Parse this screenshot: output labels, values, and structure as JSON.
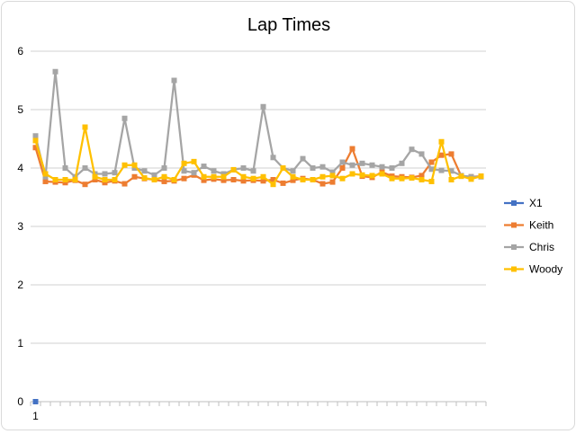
{
  "chart_data": {
    "type": "line",
    "title": "Lap Times",
    "xlabel": "",
    "ylabel": "",
    "ylim": [
      0,
      6
    ],
    "yticks": [
      0,
      1,
      2,
      3,
      4,
      5,
      6
    ],
    "x_tick_labels": [
      "1"
    ],
    "n_points": 46,
    "grid": "horizontal",
    "legend_position": "right",
    "series": [
      {
        "name": "X1",
        "color": "#4472C4",
        "values": [
          0
        ]
      },
      {
        "name": "Keith",
        "color": "#ED7D31",
        "values": [
          4.35,
          3.77,
          3.76,
          3.75,
          3.79,
          3.72,
          3.8,
          3.75,
          3.78,
          3.73,
          3.85,
          3.82,
          3.8,
          3.77,
          3.78,
          3.82,
          3.88,
          3.79,
          3.81,
          3.79,
          3.8,
          3.78,
          3.79,
          3.78,
          3.8,
          3.74,
          3.79,
          3.82,
          3.8,
          3.73,
          3.76,
          4.0,
          4.33,
          3.86,
          3.84,
          3.93,
          3.86,
          3.85,
          3.84,
          3.87,
          4.1,
          4.22,
          4.24,
          3.86,
          3.85,
          3.86
        ]
      },
      {
        "name": "Chris",
        "color": "#A5A5A5",
        "values": [
          4.55,
          3.85,
          5.65,
          4.0,
          3.85,
          4.0,
          3.9,
          3.9,
          3.92,
          4.85,
          4.0,
          3.95,
          3.88,
          4.0,
          5.5,
          3.95,
          3.92,
          4.03,
          3.95,
          3.9,
          3.97,
          4.0,
          3.95,
          5.05,
          4.18,
          4.0,
          3.95,
          4.16,
          4.0,
          4.02,
          3.93,
          4.1,
          4.05,
          4.08,
          4.05,
          4.02,
          4.0,
          4.08,
          4.32,
          4.24,
          3.98,
          3.96,
          3.95,
          3.87,
          3.85,
          3.85
        ]
      },
      {
        "name": "Woody",
        "color": "#FFC000",
        "values": [
          4.47,
          3.9,
          3.8,
          3.8,
          3.8,
          4.7,
          3.85,
          3.8,
          3.8,
          4.05,
          4.05,
          3.83,
          3.8,
          3.85,
          3.8,
          4.08,
          4.11,
          3.85,
          3.85,
          3.85,
          3.97,
          3.85,
          3.82,
          3.85,
          3.72,
          4.0,
          3.85,
          3.8,
          3.8,
          3.85,
          3.87,
          3.82,
          3.9,
          3.88,
          3.87,
          3.9,
          3.82,
          3.82,
          3.83,
          3.8,
          3.77,
          4.45,
          3.8,
          3.86,
          3.81,
          3.86
        ]
      }
    ]
  }
}
